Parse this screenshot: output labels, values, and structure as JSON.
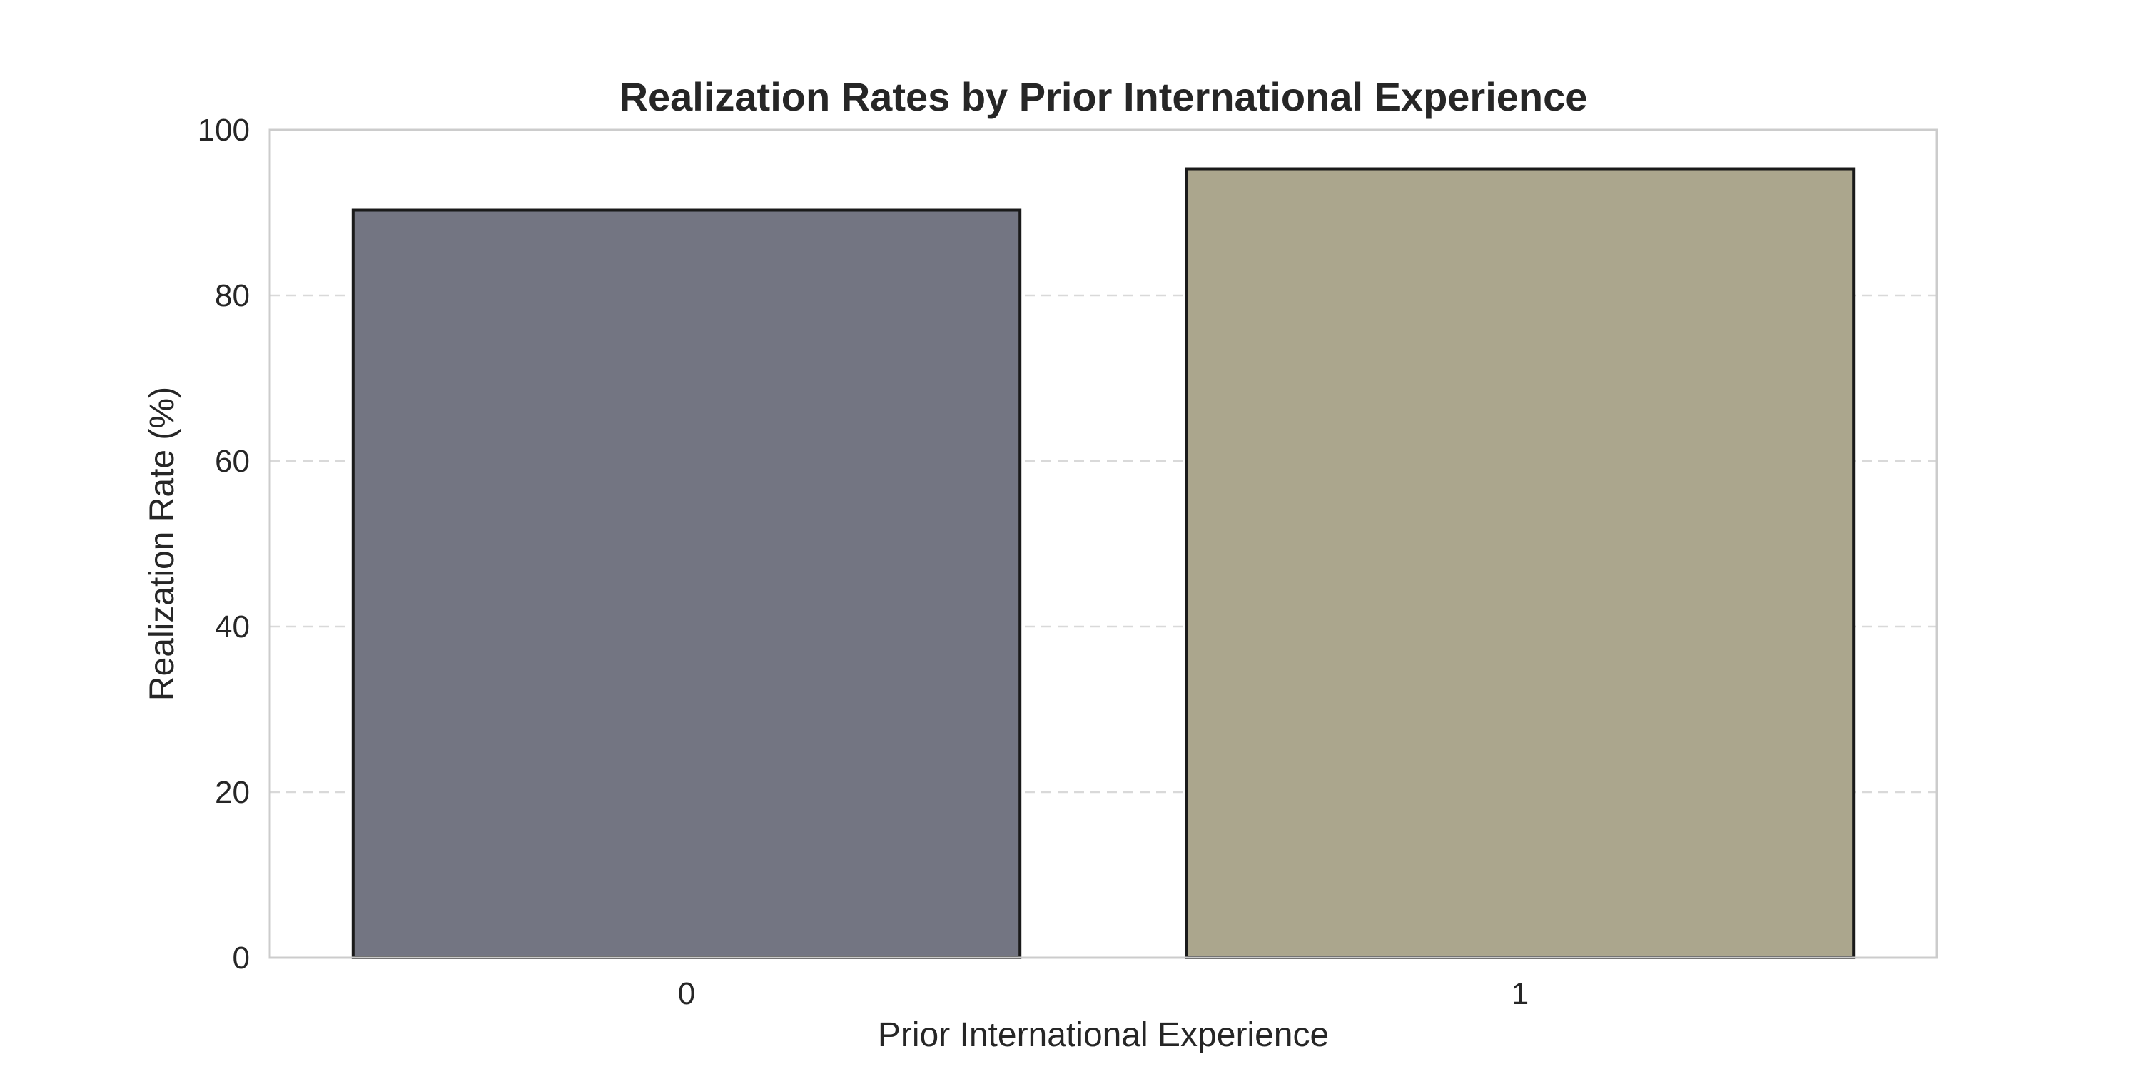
{
  "chart_data": {
    "type": "bar",
    "title": "Realization Rates by Prior International Experience",
    "xlabel": "Prior International Experience",
    "ylabel": "Realization Rate (%)",
    "categories": [
      "0",
      "1"
    ],
    "values": [
      90.3,
      95.3
    ],
    "ylim": [
      0,
      100
    ],
    "yticks": [
      0,
      20,
      40,
      60,
      80,
      100
    ],
    "ytick_labels": [
      "0",
      "20",
      "40",
      "60",
      "80",
      "100"
    ],
    "grid": "y-dashed",
    "colors": [
      "#737582",
      "#aba68d"
    ]
  }
}
